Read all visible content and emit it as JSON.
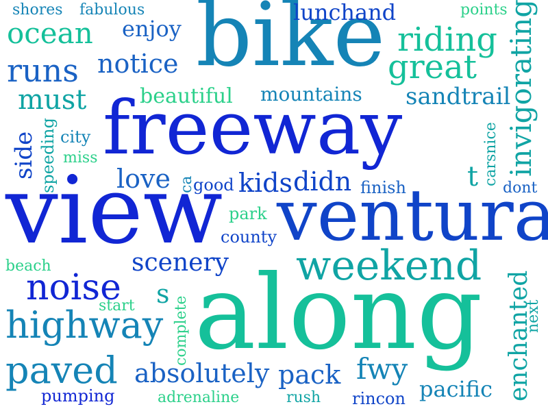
{
  "colors": {
    "blue_deep": "#1126d4",
    "blue": "#1044c8",
    "blue_mid": "#1a62c4",
    "teal_blue": "#1584b6",
    "teal": "#10a4a4",
    "teal_green": "#15c09a",
    "green": "#2bd08a"
  },
  "words": [
    "shores",
    "fabulous",
    "ocean",
    "enjoy",
    "bike",
    "lunchand",
    "points",
    "riding",
    "great",
    "runs",
    "notice",
    "invigorating",
    "must",
    "beautiful",
    "mountains",
    "sandtrail",
    "freeway",
    "side",
    "speeding",
    "city",
    "miss",
    "carsnice",
    "invigorating",
    "love",
    "ca",
    "good",
    "kids",
    "didn",
    "finish",
    "t",
    "dont",
    "view",
    "ventura",
    "park",
    "county",
    "beach",
    "scenery",
    "weekend",
    "noise",
    "s",
    "start",
    "complete",
    "along",
    "enchanted",
    "next",
    "highway",
    "paved",
    "absolutely",
    "pack",
    "fwy",
    "pacific",
    "pumping",
    "adrenaline",
    "rush",
    "rincon"
  ]
}
